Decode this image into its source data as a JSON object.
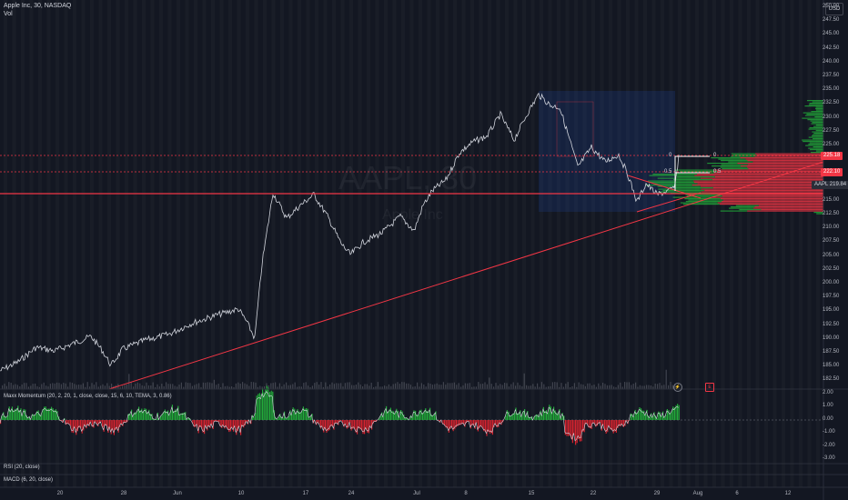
{
  "header": {
    "symbol_line": "Apple Inc, 30, NASDAQ",
    "volume_label": "Vol"
  },
  "currency_button": "USD",
  "watermark": {
    "ticker": "AAPL, 30",
    "name": "Apple Inc"
  },
  "price_axis": [
    "250.00",
    "247.50",
    "245.00",
    "242.50",
    "240.00",
    "237.50",
    "235.00",
    "232.50",
    "230.00",
    "227.50",
    "225.00",
    "222.50",
    "220.00",
    "217.50",
    "215.00",
    "212.50",
    "210.00",
    "207.50",
    "205.00",
    "202.50",
    "200.00",
    "197.50",
    "195.00",
    "192.50",
    "190.00",
    "187.50",
    "185.00",
    "182.50"
  ],
  "price_tags": {
    "level_high": "225.18",
    "level_mid": "222.10",
    "last_price_label": "AAPL",
    "last_price": "219.84"
  },
  "fib_labels": {
    "zero_a": "0",
    "zero_b": "0",
    "half_a": "0.5",
    "half_b": "0.5"
  },
  "time_axis": [
    "20",
    "28",
    "Jun",
    "10",
    "17",
    "24",
    "Jul",
    "8",
    "15",
    "22",
    "29",
    "Aug",
    "6",
    "12"
  ],
  "momentum_pane": {
    "title": "Maxx Momentum (20, 2, 20, 1, close, close, 15, 6, 10, TEMA, 3, 0.86)",
    "axis": [
      "2.00",
      "1.00",
      "0.00",
      "-1.00",
      "-2.00",
      "-3.00"
    ]
  },
  "rsi_pane": {
    "title": "RSI (20, close)"
  },
  "macd_pane": {
    "title": "MACD (6, 20, close)"
  },
  "colors": {
    "background": "#131722",
    "candle": "#d1d4dc",
    "trendline": "#f23645",
    "histogram_up": "#22ab3a",
    "histogram_down": "#d5232f",
    "volume_profile_up": "#22ab3a",
    "volume_profile_down": "#f23645",
    "box_fill": "#2962ff"
  },
  "icons": {
    "lightning": "lightning-icon",
    "e_badge": "earnings-icon"
  }
}
